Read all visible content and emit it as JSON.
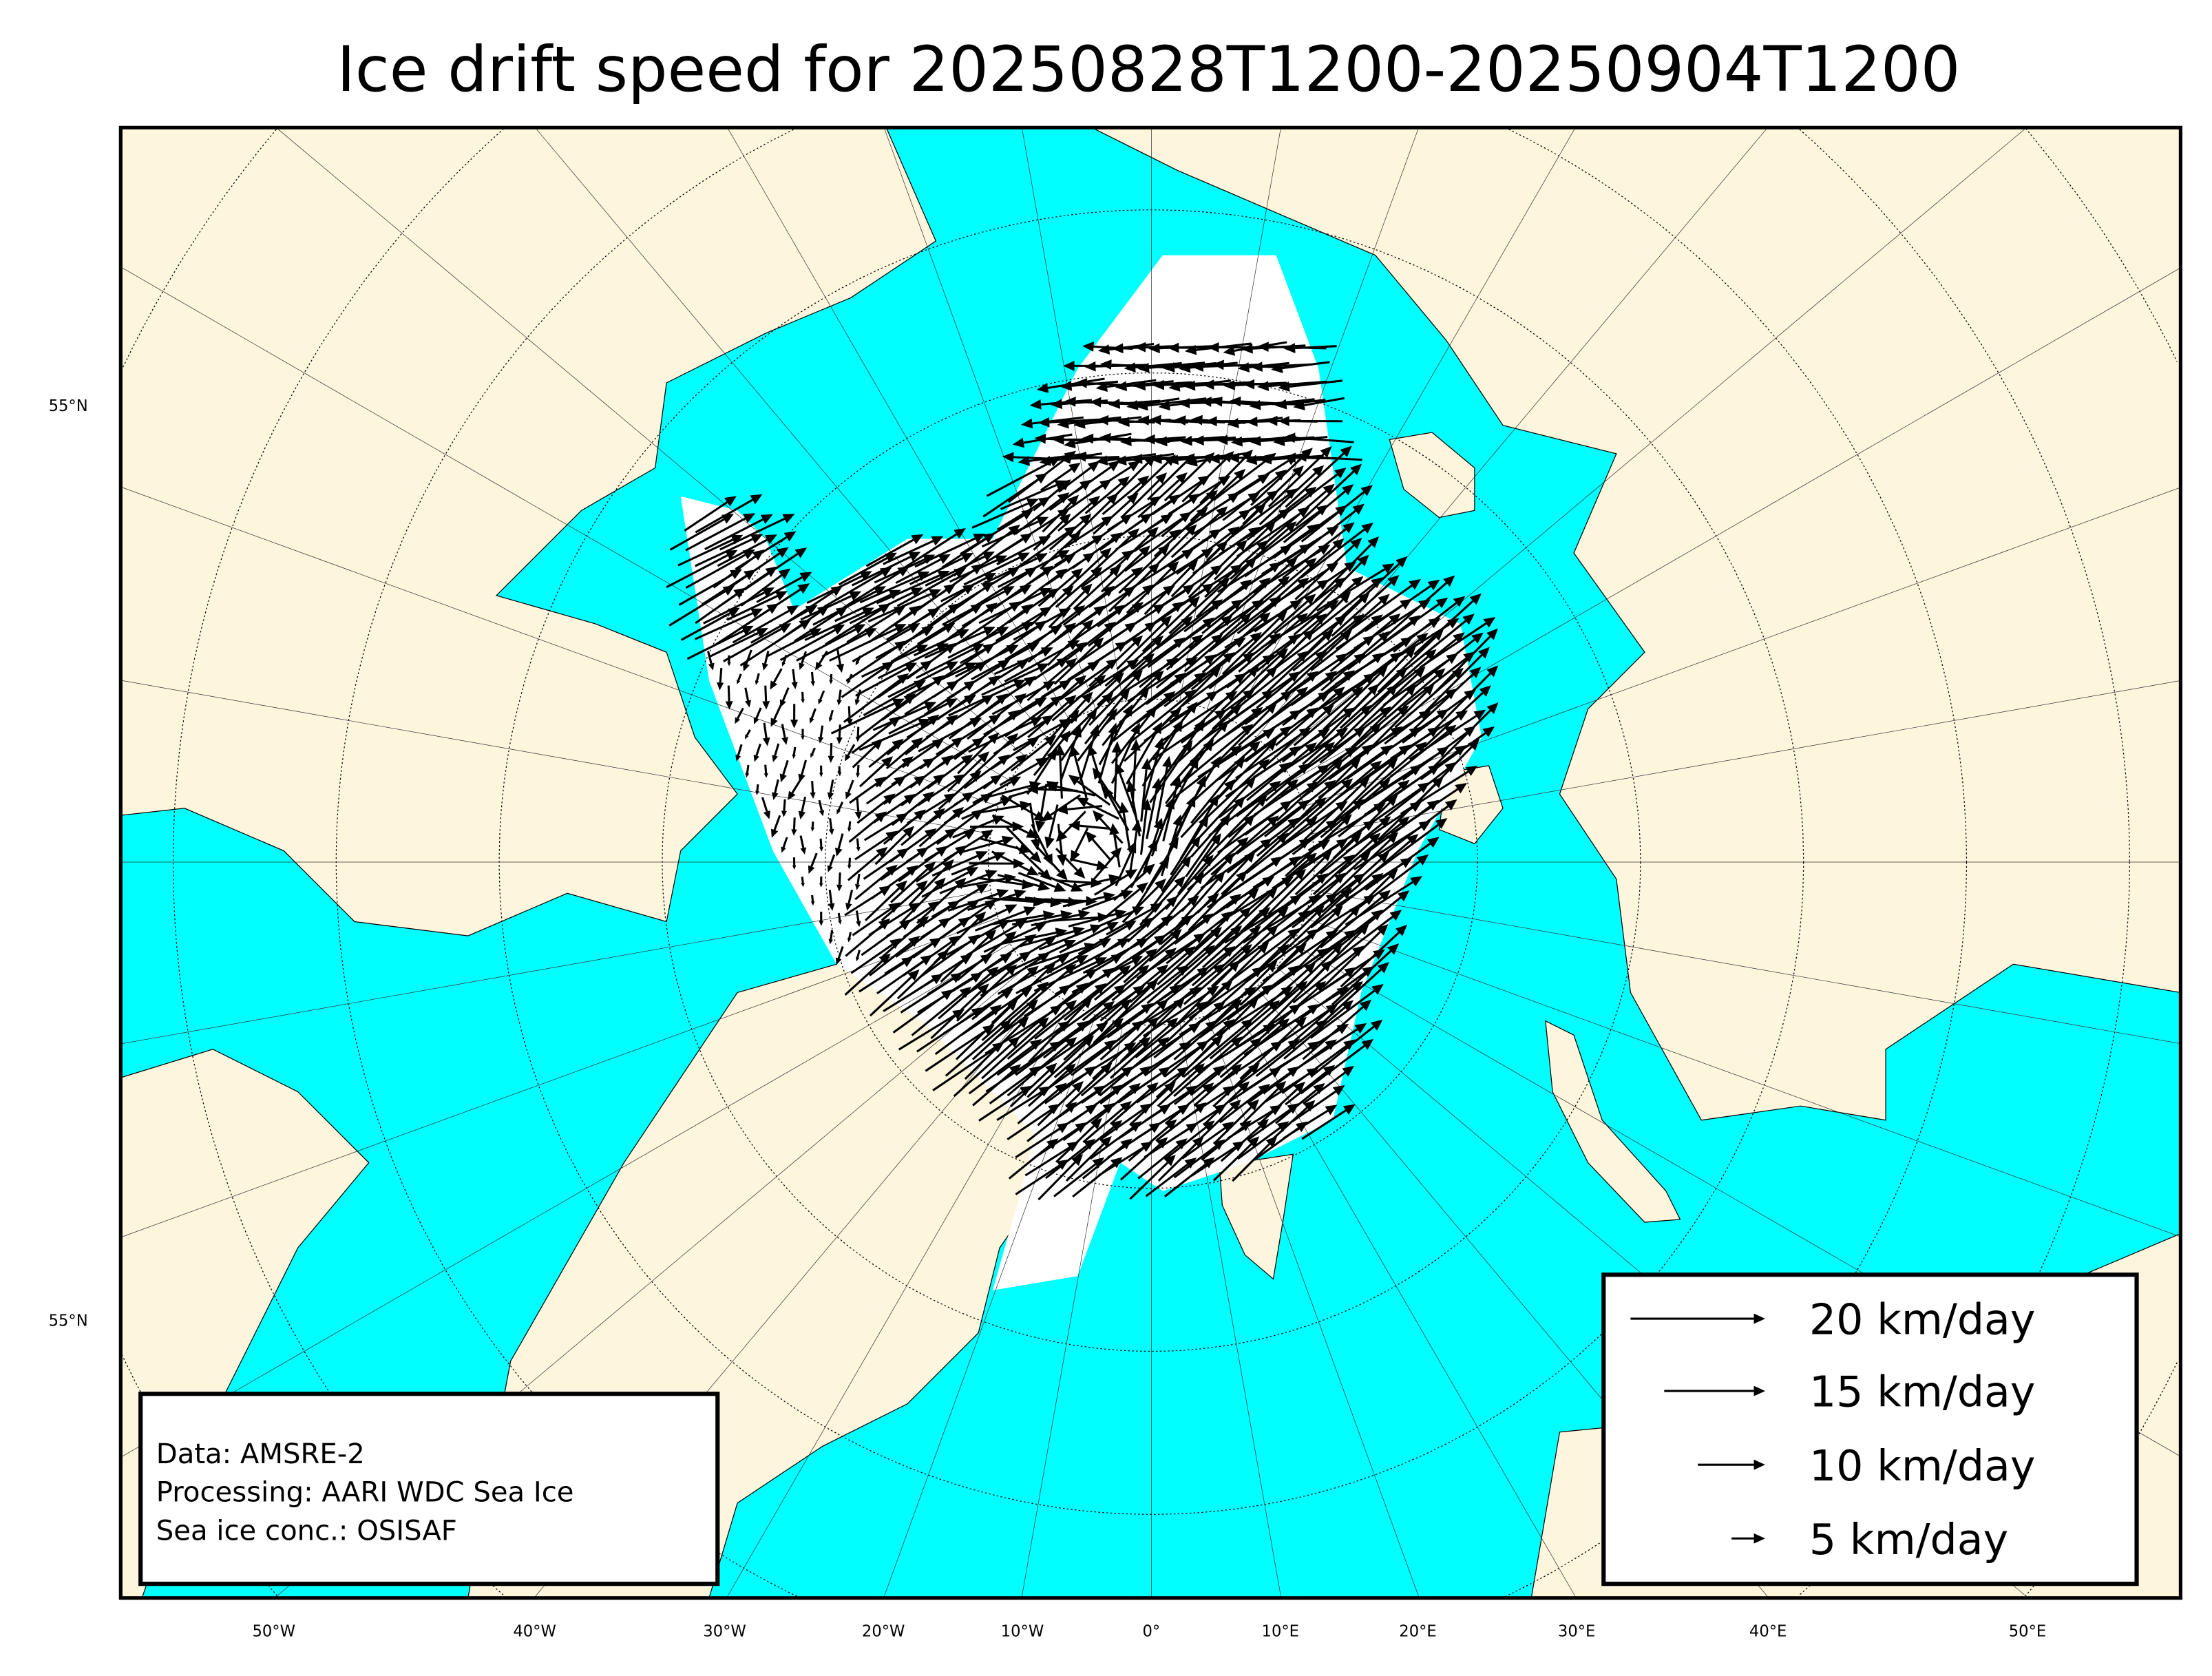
{
  "title": "Ice drift speed for 20250828T1200-20250904T1200",
  "colors": {
    "ocean": "#00ffff",
    "land": "#fdf5dc",
    "ice": "#ffffff",
    "arrow": "#000000",
    "frame": "#000000"
  },
  "lat_labels": [
    "55°N",
    "55°N"
  ],
  "lon_labels": [
    "50°W",
    "40°W",
    "30°W",
    "20°W",
    "10°W",
    "0°",
    "10°E",
    "20°E",
    "30°E",
    "40°E",
    "50°E"
  ],
  "legend": {
    "items": [
      {
        "speed": 20,
        "label": "20 km/day"
      },
      {
        "speed": 15,
        "label": "15 km/day"
      },
      {
        "speed": 10,
        "label": "10 km/day"
      },
      {
        "speed": 5,
        "label": "5 km/day"
      }
    ]
  },
  "info": {
    "lines": [
      "Data: AMSRE-2",
      "Processing: AARI WDC Sea Ice",
      "Sea ice conc.: OSISAF"
    ]
  },
  "chart_data": {
    "type": "vector-map",
    "title": "Ice drift speed for 20250828T1200-20250904T1200",
    "units": "km/day",
    "legend_reference_speeds": [
      20,
      15,
      10,
      5
    ],
    "projection": "north polar stereographic",
    "graticule": {
      "meridian_step_deg": 10
    }
  }
}
